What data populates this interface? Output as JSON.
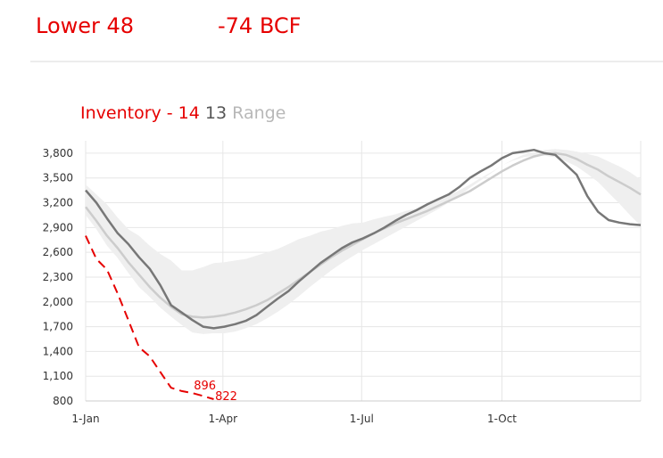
{
  "header": {
    "region": "Lower 48",
    "change": "-74 BCF"
  },
  "title": {
    "part1": "Inventory - 14",
    "part2": "13",
    "part3": "Range"
  },
  "colors": {
    "accent": "#e60000",
    "series_2013": "#cccccc",
    "series_2012": "#777777",
    "range": "#efefef",
    "grid": "#e6e6e6"
  },
  "chart_data": {
    "type": "line",
    "xlabel": "",
    "ylabel": "",
    "x_ticks": [
      "1-Jan",
      "1-Apr",
      "1-Jul",
      "1-Oct"
    ],
    "x_tick_days": [
      0,
      90,
      181,
      273
    ],
    "xlim": [
      0,
      364
    ],
    "y_ticks": [
      800,
      1100,
      1400,
      1700,
      2000,
      2300,
      2600,
      2900,
      3200,
      3500,
      3800
    ],
    "ylim": [
      800,
      3950
    ],
    "grid": true,
    "range": {
      "x": [
        0,
        7,
        14,
        21,
        28,
        35,
        42,
        49,
        56,
        63,
        70,
        77,
        84,
        91,
        98,
        105,
        112,
        119,
        126,
        133,
        140,
        147,
        154,
        161,
        168,
        175,
        182,
        189,
        196,
        203,
        210,
        217,
        224,
        231,
        238,
        245,
        252,
        259,
        266,
        273,
        280,
        287,
        294,
        301,
        308,
        315,
        322,
        329,
        336,
        343,
        350,
        357,
        364
      ],
      "upper": [
        3420,
        3300,
        3180,
        3020,
        2880,
        2800,
        2680,
        2580,
        2500,
        2380,
        2380,
        2420,
        2470,
        2480,
        2500,
        2520,
        2560,
        2600,
        2640,
        2700,
        2760,
        2800,
        2850,
        2880,
        2920,
        2950,
        2960,
        3000,
        3030,
        3060,
        3100,
        3130,
        3180,
        3230,
        3290,
        3350,
        3420,
        3500,
        3570,
        3650,
        3720,
        3780,
        3810,
        3840,
        3850,
        3840,
        3820,
        3790,
        3760,
        3700,
        3640,
        3570,
        3480
      ],
      "lower": [
        3050,
        2880,
        2680,
        2530,
        2350,
        2180,
        2060,
        1930,
        1820,
        1720,
        1630,
        1610,
        1620,
        1620,
        1640,
        1680,
        1730,
        1800,
        1880,
        1970,
        2070,
        2180,
        2280,
        2380,
        2470,
        2550,
        2630,
        2700,
        2770,
        2840,
        2910,
        2980,
        3050,
        3120,
        3200,
        3280,
        3380,
        3470,
        3560,
        3650,
        3710,
        3750,
        3770,
        3770,
        3750,
        3700,
        3640,
        3550,
        3450,
        3320,
        3190,
        3050,
        2920
      ]
    },
    "series": [
      {
        "x": [
          0,
          7,
          14,
          21,
          28,
          35,
          42,
          49,
          56,
          63,
          70,
          77,
          84,
          91,
          98,
          105,
          112,
          119,
          126,
          133,
          140,
          147,
          154,
          161,
          168,
          175,
          182,
          189,
          196,
          203,
          210,
          217,
          224,
          231,
          238,
          245,
          252,
          259,
          266,
          273,
          280,
          287,
          294,
          301,
          308,
          315,
          322,
          329,
          336,
          343,
          350,
          357,
          364
        ],
        "values": [
          3150,
          2980,
          2800,
          2650,
          2480,
          2330,
          2180,
          2050,
          1940,
          1850,
          1820,
          1810,
          1820,
          1840,
          1870,
          1910,
          1960,
          2020,
          2100,
          2180,
          2270,
          2360,
          2450,
          2540,
          2620,
          2690,
          2760,
          2830,
          2890,
          2950,
          3000,
          3050,
          3100,
          3160,
          3220,
          3280,
          3340,
          3420,
          3500,
          3580,
          3650,
          3710,
          3760,
          3790,
          3800,
          3780,
          3730,
          3660,
          3600,
          3520,
          3450,
          3380,
          3300
        ]
      },
      {
        "x": [
          0,
          7,
          14,
          21,
          28,
          35,
          42,
          49,
          56,
          63,
          70,
          77,
          84,
          91,
          98,
          105,
          112,
          119,
          126,
          133,
          140,
          147,
          154,
          161,
          168,
          175,
          182,
          189,
          196,
          203,
          210,
          217,
          224,
          231,
          238,
          245,
          252,
          259,
          266,
          273,
          280,
          287,
          294,
          301,
          308,
          315,
          322,
          329,
          336,
          343,
          350,
          357,
          364
        ],
        "values": [
          3350,
          3200,
          3010,
          2830,
          2700,
          2540,
          2400,
          2200,
          1960,
          1870,
          1780,
          1700,
          1680,
          1700,
          1730,
          1770,
          1840,
          1940,
          2040,
          2130,
          2250,
          2360,
          2470,
          2560,
          2650,
          2720,
          2770,
          2830,
          2900,
          2980,
          3050,
          3110,
          3180,
          3240,
          3300,
          3390,
          3500,
          3580,
          3650,
          3740,
          3800,
          3820,
          3840,
          3800,
          3780,
          3660,
          3540,
          3280,
          3090,
          2990,
          2960,
          2940,
          2930
        ]
      },
      {
        "x": [
          0,
          7,
          14,
          21,
          28,
          35,
          42,
          49,
          56,
          63,
          70,
          77,
          84
        ],
        "values": [
          2800,
          2520,
          2390,
          2100,
          1780,
          1450,
          1340,
          1150,
          960,
          920,
          896,
          860,
          822
        ]
      }
    ],
    "data_labels": [
      "896",
      "822"
    ]
  }
}
